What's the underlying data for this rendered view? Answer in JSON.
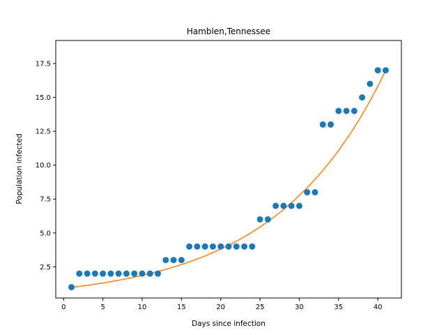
{
  "chart_data": {
    "type": "scatter",
    "title": "Hamblen,Tennessee",
    "xlabel": "Days since infection",
    "ylabel": "Population infected",
    "xlim": [
      -1,
      43
    ],
    "ylim": [
      0.2,
      19.2
    ],
    "xticks": [
      0,
      5,
      10,
      15,
      20,
      25,
      30,
      35,
      40
    ],
    "yticks": [
      2.5,
      5.0,
      7.5,
      10.0,
      12.5,
      15.0,
      17.5
    ],
    "grid": false,
    "points": {
      "color": "#1f77b4",
      "x": [
        1,
        2,
        3,
        4,
        5,
        6,
        7,
        8,
        9,
        10,
        11,
        12,
        13,
        14,
        15,
        16,
        17,
        18,
        19,
        20,
        21,
        22,
        23,
        24,
        25,
        26,
        27,
        28,
        29,
        30,
        31,
        32,
        33,
        34,
        35,
        36,
        37,
        38,
        39,
        40,
        41
      ],
      "y": [
        1,
        2,
        2,
        2,
        2,
        2,
        2,
        2,
        2,
        2,
        2,
        2,
        3,
        3,
        3,
        4,
        4,
        4,
        4,
        4,
        4,
        4,
        4,
        4,
        6,
        6,
        7,
        7,
        7,
        7,
        8,
        8,
        13,
        13,
        14,
        14,
        14,
        15,
        16,
        17,
        17
      ]
    },
    "fit": {
      "color": "#ff7f0e",
      "x": [
        1,
        5,
        10,
        15,
        20,
        25,
        30,
        35,
        38,
        41
      ],
      "y": [
        1.0,
        1.32,
        1.87,
        2.65,
        3.77,
        5.35,
        7.62,
        10.83,
        13.35,
        18.3
      ]
    }
  }
}
